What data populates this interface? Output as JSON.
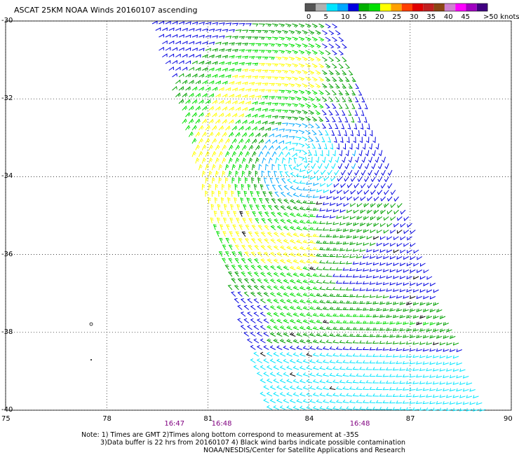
{
  "header": {
    "title": "ASCAT 25KM NOAA Winds 20160107 ascending"
  },
  "legend": {
    "labels": [
      "0",
      "5",
      "10",
      "15",
      "20",
      "25",
      "30",
      "35",
      "40",
      "45",
      ">50 knots"
    ],
    "colors": [
      "#555555",
      "#b0b0b0",
      "#00e5ff",
      "#00a8ff",
      "#0000e0",
      "#00b000",
      "#00e000",
      "#ffff00",
      "#ffa000",
      "#ff4000",
      "#e00000",
      "#c02020",
      "#8b4513",
      "#d080d0",
      "#ff00ff",
      "#a000c0",
      "#400080"
    ]
  },
  "map": {
    "lat_ticks": [
      "-30",
      "-32",
      "-34",
      "-36",
      "-38",
      "-40"
    ],
    "lon_ticks": [
      "75",
      "78",
      "81",
      "84",
      "87",
      "90"
    ],
    "lat_range": [
      -40,
      -30
    ],
    "lon_range": [
      75,
      90
    ],
    "gridlines": true,
    "cyclone_center": {
      "lon": 83.7,
      "lat": -33.6
    },
    "times": [
      {
        "text": "16:47",
        "lon": 80.0
      },
      {
        "text": "16:48",
        "lon": 81.4
      },
      {
        "text": "16:48",
        "lon": 85.5
      }
    ]
  },
  "notes": {
    "line1": "Note: 1) Times are GMT 2)Times along bottom correspond to measurement at -35S",
    "line2": "3)Data buffer is 22 hrs from 20160107 4) Black wind barbs indicate possible contamination",
    "line3": "NOAA/NESDIS/Center for Satellite Applications and Research"
  }
}
